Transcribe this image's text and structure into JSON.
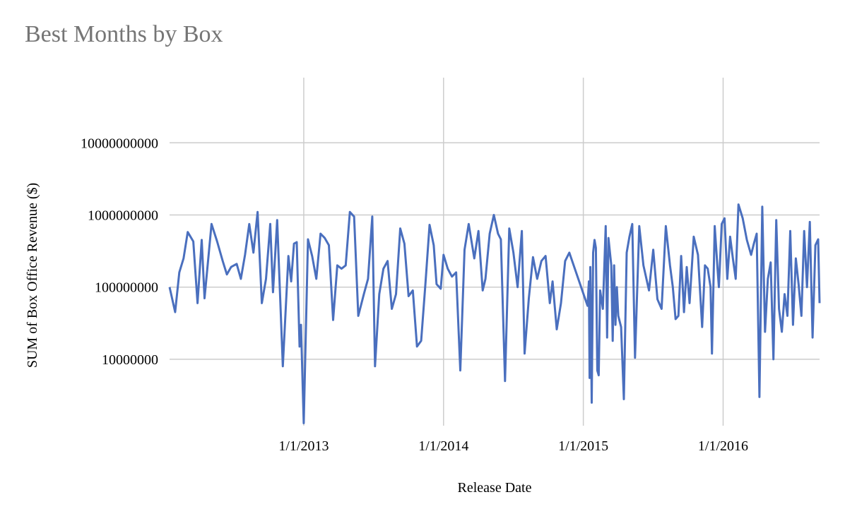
{
  "chart_data": {
    "type": "line",
    "title": "Best Months by Box",
    "xlabel": "Release Date",
    "ylabel": "SUM of Box Office Revenue ($)",
    "yscale": "log",
    "ylim": [
      1200000,
      80000000000
    ],
    "xlim_years": [
      2012.04,
      2016.69
    ],
    "y_ticks": [
      {
        "value": 10000000,
        "label": "10000000"
      },
      {
        "value": 100000000,
        "label": "100000000"
      },
      {
        "value": 1000000000,
        "label": "1000000000"
      },
      {
        "value": 10000000000,
        "label": "10000000000"
      }
    ],
    "x_ticks": [
      {
        "value": 2013,
        "label": "1/1/2013"
      },
      {
        "value": 2014,
        "label": "1/1/2014"
      },
      {
        "value": 2015,
        "label": "1/1/2015"
      },
      {
        "value": 2016,
        "label": "1/1/2016"
      }
    ],
    "line_color": "#4a6fbe",
    "series": [
      {
        "name": "SUM of Box Office Revenue ($)",
        "points": [
          [
            2012.04,
            100000000
          ],
          [
            2012.08,
            45000000
          ],
          [
            2012.11,
            160000000
          ],
          [
            2012.14,
            250000000
          ],
          [
            2012.17,
            580000000
          ],
          [
            2012.21,
            430000000
          ],
          [
            2012.24,
            60000000
          ],
          [
            2012.27,
            450000000
          ],
          [
            2012.29,
            70000000
          ],
          [
            2012.34,
            750000000
          ],
          [
            2012.38,
            430000000
          ],
          [
            2012.42,
            230000000
          ],
          [
            2012.45,
            150000000
          ],
          [
            2012.48,
            190000000
          ],
          [
            2012.52,
            210000000
          ],
          [
            2012.55,
            130000000
          ],
          [
            2012.58,
            280000000
          ],
          [
            2012.61,
            750000000
          ],
          [
            2012.64,
            300000000
          ],
          [
            2012.67,
            1100000000
          ],
          [
            2012.7,
            60000000
          ],
          [
            2012.73,
            130000000
          ],
          [
            2012.76,
            750000000
          ],
          [
            2012.78,
            85000000
          ],
          [
            2012.81,
            850000000
          ],
          [
            2012.85,
            8000000
          ],
          [
            2012.89,
            270000000
          ],
          [
            2012.91,
            120000000
          ],
          [
            2012.93,
            400000000
          ],
          [
            2012.95,
            420000000
          ],
          [
            2012.97,
            15000000
          ],
          [
            2012.98,
            30000000
          ],
          [
            2013.0,
            1300000
          ],
          [
            2013.03,
            460000000
          ],
          [
            2013.06,
            270000000
          ],
          [
            2013.09,
            130000000
          ],
          [
            2013.12,
            550000000
          ],
          [
            2013.15,
            480000000
          ],
          [
            2013.18,
            380000000
          ],
          [
            2013.21,
            35000000
          ],
          [
            2013.24,
            200000000
          ],
          [
            2013.27,
            180000000
          ],
          [
            2013.3,
            200000000
          ],
          [
            2013.33,
            1100000000
          ],
          [
            2013.36,
            950000000
          ],
          [
            2013.39,
            40000000
          ],
          [
            2013.43,
            80000000
          ],
          [
            2013.46,
            130000000
          ],
          [
            2013.49,
            950000000
          ],
          [
            2013.51,
            8000000
          ],
          [
            2013.54,
            80000000
          ],
          [
            2013.57,
            180000000
          ],
          [
            2013.6,
            230000000
          ],
          [
            2013.63,
            50000000
          ],
          [
            2013.66,
            80000000
          ],
          [
            2013.69,
            650000000
          ],
          [
            2013.72,
            400000000
          ],
          [
            2013.75,
            75000000
          ],
          [
            2013.78,
            90000000
          ],
          [
            2013.81,
            15000000
          ],
          [
            2013.84,
            18000000
          ],
          [
            2013.87,
            110000000
          ],
          [
            2013.9,
            730000000
          ],
          [
            2013.93,
            380000000
          ],
          [
            2013.95,
            110000000
          ],
          [
            2013.98,
            95000000
          ],
          [
            2014.0,
            280000000
          ],
          [
            2014.03,
            180000000
          ],
          [
            2014.06,
            140000000
          ],
          [
            2014.09,
            160000000
          ],
          [
            2014.12,
            7000000
          ],
          [
            2014.15,
            330000000
          ],
          [
            2014.18,
            750000000
          ],
          [
            2014.22,
            250000000
          ],
          [
            2014.25,
            600000000
          ],
          [
            2014.28,
            90000000
          ],
          [
            2014.3,
            130000000
          ],
          [
            2014.33,
            550000000
          ],
          [
            2014.36,
            1000000000
          ],
          [
            2014.39,
            550000000
          ],
          [
            2014.41,
            460000000
          ],
          [
            2014.44,
            5000000
          ],
          [
            2014.47,
            650000000
          ],
          [
            2014.5,
            300000000
          ],
          [
            2014.53,
            100000000
          ],
          [
            2014.56,
            600000000
          ],
          [
            2014.58,
            12000000
          ],
          [
            2014.61,
            70000000
          ],
          [
            2014.64,
            260000000
          ],
          [
            2014.67,
            130000000
          ],
          [
            2014.7,
            230000000
          ],
          [
            2014.73,
            270000000
          ],
          [
            2014.76,
            60000000
          ],
          [
            2014.78,
            120000000
          ],
          [
            2014.81,
            26000000
          ],
          [
            2014.84,
            60000000
          ],
          [
            2014.87,
            230000000
          ],
          [
            2014.9,
            300000000
          ],
          [
            2015.03,
            55000000
          ],
          [
            2015.04,
            120000000
          ],
          [
            2015.045,
            5500000
          ],
          [
            2015.05,
            190000000
          ],
          [
            2015.06,
            2500000
          ],
          [
            2015.07,
            300000000
          ],
          [
            2015.08,
            450000000
          ],
          [
            2015.09,
            350000000
          ],
          [
            2015.1,
            7000000
          ],
          [
            2015.11,
            6000000
          ],
          [
            2015.12,
            90000000
          ],
          [
            2015.14,
            50000000
          ],
          [
            2015.16,
            700000000
          ],
          [
            2015.17,
            20000000
          ],
          [
            2015.18,
            480000000
          ],
          [
            2015.2,
            200000000
          ],
          [
            2015.21,
            18000000
          ],
          [
            2015.22,
            200000000
          ],
          [
            2015.23,
            30000000
          ],
          [
            2015.24,
            100000000
          ],
          [
            2015.25,
            40000000
          ],
          [
            2015.27,
            28000000
          ],
          [
            2015.29,
            2800000
          ],
          [
            2015.31,
            300000000
          ],
          [
            2015.33,
            500000000
          ],
          [
            2015.35,
            750000000
          ],
          [
            2015.37,
            10500000
          ],
          [
            2015.4,
            700000000
          ],
          [
            2015.43,
            200000000
          ],
          [
            2015.47,
            90000000
          ],
          [
            2015.5,
            330000000
          ],
          [
            2015.53,
            68000000
          ],
          [
            2015.56,
            50000000
          ],
          [
            2015.59,
            700000000
          ],
          [
            2015.62,
            200000000
          ],
          [
            2015.64,
            100000000
          ],
          [
            2015.66,
            36000000
          ],
          [
            2015.68,
            40000000
          ],
          [
            2015.7,
            270000000
          ],
          [
            2015.72,
            45000000
          ],
          [
            2015.74,
            190000000
          ],
          [
            2015.76,
            60000000
          ],
          [
            2015.79,
            500000000
          ],
          [
            2015.82,
            280000000
          ],
          [
            2015.85,
            28000000
          ],
          [
            2015.87,
            200000000
          ],
          [
            2015.89,
            180000000
          ],
          [
            2015.91,
            100000000
          ],
          [
            2015.92,
            12000000
          ],
          [
            2015.94,
            700000000
          ],
          [
            2015.96,
            180000000
          ],
          [
            2015.97,
            100000000
          ],
          [
            2015.99,
            750000000
          ],
          [
            2016.01,
            900000000
          ],
          [
            2016.03,
            130000000
          ],
          [
            2016.05,
            500000000
          ],
          [
            2016.07,
            250000000
          ],
          [
            2016.09,
            130000000
          ],
          [
            2016.11,
            1400000000
          ],
          [
            2016.14,
            900000000
          ],
          [
            2016.17,
            450000000
          ],
          [
            2016.2,
            280000000
          ],
          [
            2016.22,
            400000000
          ],
          [
            2016.24,
            550000000
          ],
          [
            2016.26,
            3000000
          ],
          [
            2016.28,
            1300000000
          ],
          [
            2016.3,
            24000000
          ],
          [
            2016.32,
            130000000
          ],
          [
            2016.34,
            220000000
          ],
          [
            2016.36,
            10000000
          ],
          [
            2016.38,
            850000000
          ],
          [
            2016.4,
            50000000
          ],
          [
            2016.42,
            24000000
          ],
          [
            2016.44,
            80000000
          ],
          [
            2016.46,
            40000000
          ],
          [
            2016.48,
            600000000
          ],
          [
            2016.5,
            30000000
          ],
          [
            2016.52,
            250000000
          ],
          [
            2016.54,
            110000000
          ],
          [
            2016.56,
            40000000
          ],
          [
            2016.58,
            600000000
          ],
          [
            2016.6,
            100000000
          ],
          [
            2016.62,
            800000000
          ],
          [
            2016.64,
            20000000
          ],
          [
            2016.66,
            380000000
          ],
          [
            2016.68,
            460000000
          ],
          [
            2016.69,
            60000000
          ]
        ]
      }
    ]
  }
}
